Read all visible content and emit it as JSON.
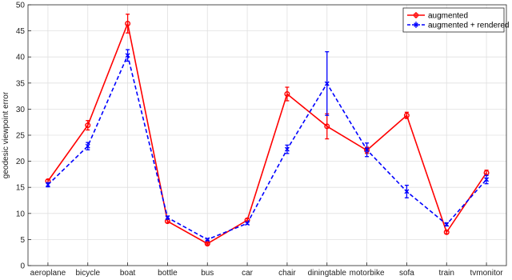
{
  "chart_data": {
    "type": "line",
    "title": "",
    "xlabel": "",
    "ylabel": "geodesic viewpoint error",
    "ylim": [
      0,
      50
    ],
    "yticks": [
      0,
      5,
      10,
      15,
      20,
      25,
      30,
      35,
      40,
      45,
      50
    ],
    "grid": true,
    "legend_position": "top-right",
    "categories": [
      "aeroplane",
      "bicycle",
      "boat",
      "bottle",
      "bus",
      "car",
      "chair",
      "diningtable",
      "motorbike",
      "sofa",
      "train",
      "tvmonitor"
    ],
    "series": [
      {
        "name": "augmented",
        "color": "#ff0000",
        "line_style": "solid",
        "marker": "circle",
        "values": [
          16.2,
          26.9,
          46.4,
          8.5,
          4.2,
          8.7,
          32.9,
          26.7,
          22.1,
          28.8,
          6.4,
          17.8
        ],
        "errors": [
          0.3,
          0.9,
          1.8,
          0.3,
          0.2,
          0.3,
          1.3,
          2.4,
          0.6,
          0.6,
          0.3,
          0.5
        ]
      },
      {
        "name": "augmented + rendered",
        "color": "#0000ff",
        "line_style": "dashed",
        "marker": "x",
        "values": [
          15.5,
          22.9,
          40.3,
          9.2,
          5.0,
          8.1,
          22.3,
          34.9,
          22.2,
          14.2,
          7.9,
          16.5
        ],
        "errors": [
          0.4,
          0.7,
          1.1,
          0.3,
          0.2,
          0.2,
          0.8,
          6.1,
          1.3,
          1.2,
          0.3,
          0.8
        ]
      }
    ]
  }
}
